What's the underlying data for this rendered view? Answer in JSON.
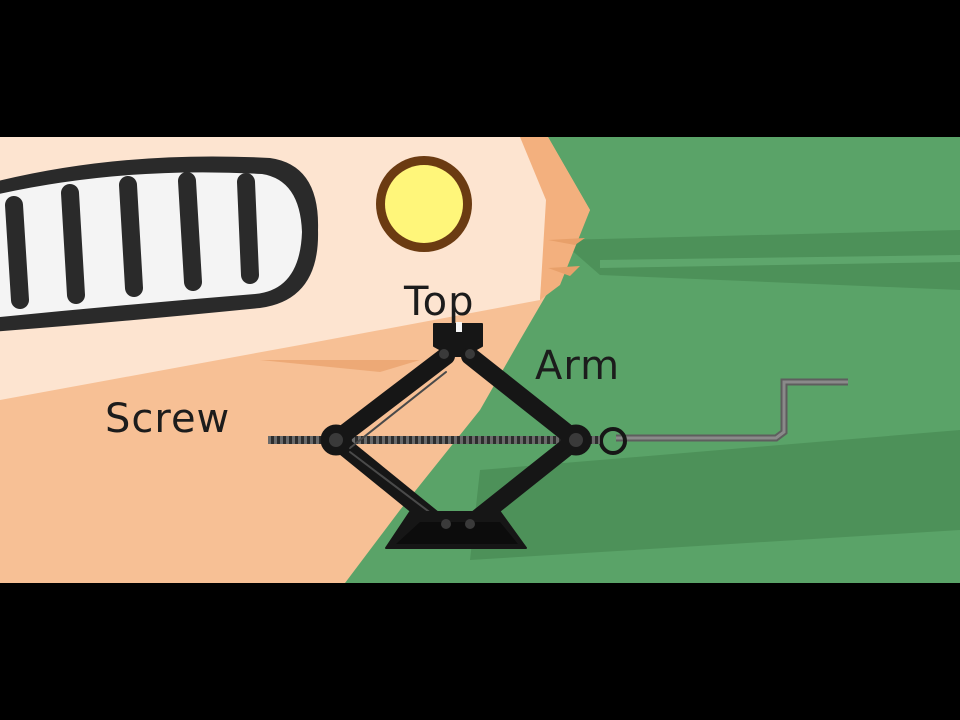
{
  "labels": {
    "top": "Top",
    "arm": "Arm",
    "screw": "Screw"
  },
  "colors": {
    "letterbox": "#000000",
    "car_body": "#f7c095",
    "car_body_light": "#fde4d0",
    "grass": "#5aa368",
    "grass_dark": "#4d9159",
    "jack": "#161616",
    "headlight": "#fff67a",
    "headlight_rim": "#6b3b12",
    "grille_bar": "#2a2a2a",
    "crank": "#707070",
    "label_text": "#1c1c1c"
  },
  "icons": {
    "jack": "scissor-jack",
    "handle": "crank-handle",
    "light": "headlight",
    "grille": "car-grille"
  }
}
